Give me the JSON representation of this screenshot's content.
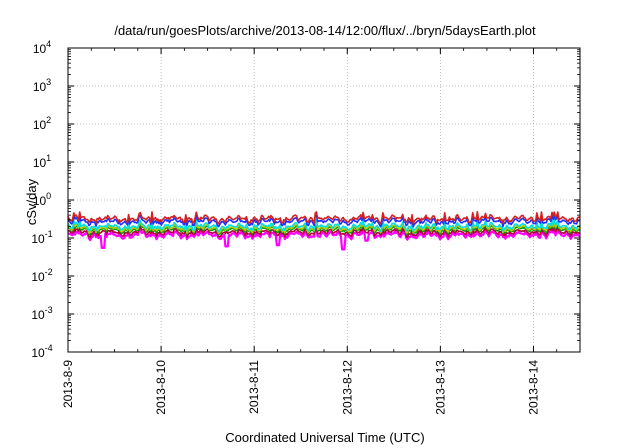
{
  "chart_data": {
    "type": "line",
    "title": "/data/run/goesPlots/archive/2013-08-14/12:00/flux/../bryn/5daysEarth.plot",
    "xlabel": "Coordinated Universal Time (UTC)",
    "ylabel": "cSv/day",
    "yscale": "log",
    "ylim": [
      0.0001,
      10000
    ],
    "y_ticks": [
      {
        "value": 0.0001,
        "base": "10",
        "exp": "-4"
      },
      {
        "value": 0.001,
        "base": "10",
        "exp": "-3"
      },
      {
        "value": 0.01,
        "base": "10",
        "exp": "-2"
      },
      {
        "value": 0.1,
        "base": "10",
        "exp": "-1"
      },
      {
        "value": 1,
        "base": "10",
        "exp": "0"
      },
      {
        "value": 10,
        "base": "10",
        "exp": "1"
      },
      {
        "value": 100,
        "base": "10",
        "exp": "2"
      },
      {
        "value": 1000,
        "base": "10",
        "exp": "3"
      },
      {
        "value": 10000,
        "base": "10",
        "exp": "4"
      }
    ],
    "xlim": [
      "2013-08-09",
      "2013-08-14T12:00"
    ],
    "x_ticks": [
      "2013-8-9",
      "2013-8-10",
      "2013-8-11",
      "2013-8-12",
      "2013-8-13",
      "2013-8-14"
    ],
    "grid": true,
    "series": [
      {
        "color": "#ff00ff",
        "level": 0.12,
        "spikes": [
          [
            "2013-08-09T09:00",
            0.055
          ],
          [
            "2013-08-10T17:00",
            0.06
          ],
          [
            "2013-08-11T06:00",
            0.065
          ],
          [
            "2013-08-11T23:00",
            0.05
          ],
          [
            "2013-08-12T05:00",
            0.085
          ]
        ]
      },
      {
        "color": "#b3003b",
        "level": 0.14,
        "spikes": []
      },
      {
        "color": "#00a000",
        "level": 0.165,
        "spikes": []
      },
      {
        "color": "#c8c800",
        "level": 0.18,
        "spikes": []
      },
      {
        "color": "#00e0e0",
        "level": 0.2,
        "spikes": []
      },
      {
        "color": "#1f2fff",
        "level": 0.27,
        "spikes": []
      },
      {
        "color": "#d42020",
        "level": 0.32,
        "spikes": []
      }
    ]
  }
}
